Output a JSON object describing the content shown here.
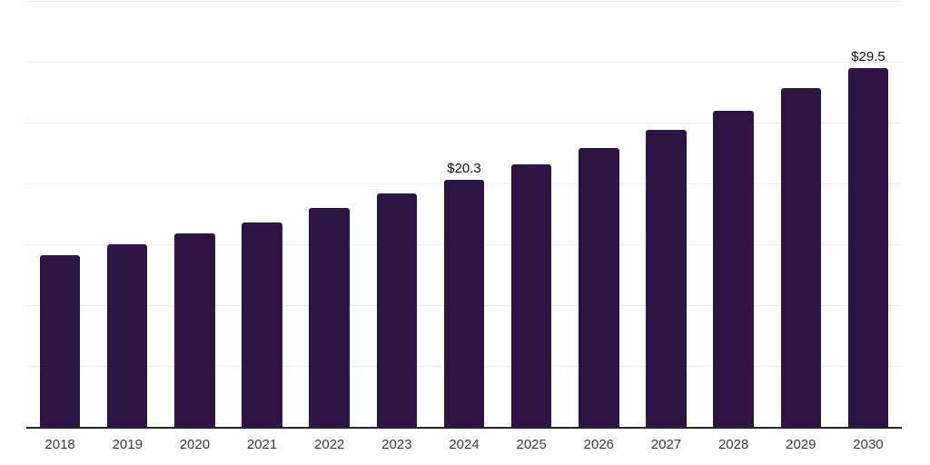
{
  "chart_data": {
    "type": "bar",
    "categories": [
      "2018",
      "2019",
      "2020",
      "2021",
      "2022",
      "2023",
      "2024",
      "2025",
      "2026",
      "2027",
      "2028",
      "2029",
      "2030"
    ],
    "values": [
      14.1,
      15.0,
      15.9,
      16.8,
      18.0,
      19.2,
      20.3,
      21.6,
      22.9,
      24.4,
      26.0,
      27.8,
      29.5
    ],
    "data_labels": [
      "",
      "",
      "",
      "",
      "",
      "",
      "$20.3",
      "",
      "",
      "",
      "",
      "",
      "$29.5"
    ],
    "xlabel": "",
    "ylabel": "",
    "ylim": [
      0,
      35
    ],
    "grid_step": 5,
    "grid": true,
    "legend": false,
    "y_axis_ticks_visible": false,
    "bar_width_fraction": 0.6,
    "colors": {
      "bar": "#2e1345",
      "axis": "#262626",
      "gridline": "#ededed",
      "tick_label": "#3a3a3a",
      "data_label": "#111111",
      "background": "#ffffff"
    }
  }
}
